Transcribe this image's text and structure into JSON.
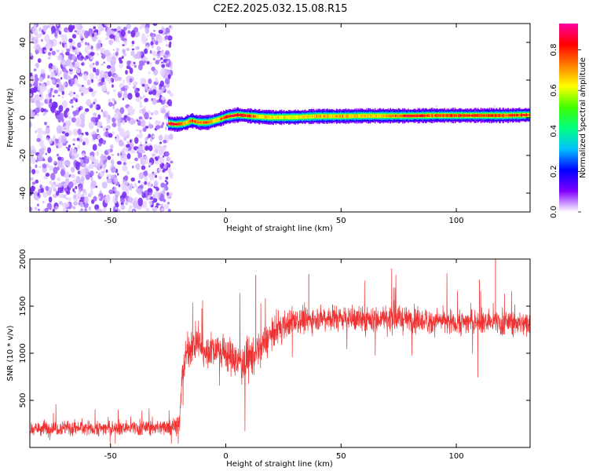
{
  "figure_title": "C2E2.2025.032.15.08.R15",
  "colorbar": {
    "label": "Normalized spectral amplitude",
    "ticks": [
      "0.0",
      "0.2",
      "0.4",
      "0.6",
      "0.8"
    ],
    "tick_values": [
      0.0,
      0.2,
      0.4,
      0.6,
      0.8
    ],
    "range": [
      0,
      0.93
    ],
    "colormap": [
      "#ffffff",
      "#8000ff",
      "#0000ff",
      "#00c0ff",
      "#00ff80",
      "#40ff00",
      "#ffff00",
      "#ff8000",
      "#ff0000",
      "#ff00a0"
    ]
  },
  "chart_data": [
    {
      "type": "heatmap",
      "title": "",
      "xlabel": "Height of straight line (km)",
      "ylabel": "Frequency (Hz)",
      "xlim": [
        -85,
        132
      ],
      "ylim": [
        -50,
        50
      ],
      "xticks": [
        -50,
        0,
        50,
        100
      ],
      "yticks": [
        -40,
        -20,
        0,
        20,
        40
      ],
      "xtick_labels": [
        "-50",
        "0",
        "50",
        "100"
      ],
      "ytick_labels": [
        "-40",
        "-20",
        "0",
        "20",
        "40"
      ],
      "regions": [
        {
          "name_hidden": true,
          "x_range": [
            -85,
            -25
          ],
          "y_range": [
            -50,
            50
          ],
          "kind": "scattered noise",
          "amplitude": [
            0.0,
            0.12
          ]
        },
        {
          "x_range": [
            -25,
            132
          ],
          "kind": "narrow line near 0 Hz",
          "amplitude_peak": 0.9
        }
      ],
      "ridge": {
        "x": [
          -25,
          -22,
          -18,
          -15,
          -12,
          -8,
          -5,
          -2,
          0,
          5,
          10,
          15,
          20,
          30,
          40,
          50,
          60,
          70,
          80,
          90,
          100,
          110,
          120,
          132
        ],
        "freq": [
          -3,
          -3.5,
          -3,
          -1.5,
          -2.5,
          -2.5,
          -1.5,
          -0.5,
          0.5,
          1.5,
          1.0,
          0.5,
          0.2,
          0.3,
          0.8,
          0.8,
          1.0,
          1.0,
          1.0,
          1.2,
          1.2,
          1.2,
          1.2,
          1.5
        ],
        "peak_amplitude": [
          0.9,
          0.92,
          0.7,
          0.8,
          0.75,
          0.85,
          0.7,
          0.8,
          0.88,
          0.9,
          0.85,
          0.7,
          0.7,
          0.65,
          0.72,
          0.75,
          0.7,
          0.75,
          0.88,
          0.8,
          0.85,
          0.85,
          0.8,
          0.85
        ]
      }
    },
    {
      "type": "line",
      "title": "",
      "xlabel": "Height of straight line (km)",
      "ylabel": "SNR (10 * v/v)",
      "xlim": [
        -85,
        132
      ],
      "ylim": [
        0,
        2000
      ],
      "xticks": [
        -50,
        0,
        50,
        100
      ],
      "yticks": [
        500,
        1000,
        1500,
        2000
      ],
      "xtick_labels": [
        "-50",
        "0",
        "50",
        "100"
      ],
      "ytick_labels": [
        "500",
        "1000",
        "1500",
        "2000"
      ],
      "color": "#ee3333",
      "series": [
        {
          "x": [
            -85,
            -70,
            -55,
            -40,
            -30,
            -22,
            -20,
            -19,
            -17,
            -15,
            -12,
            -10,
            -5,
            0,
            5,
            10,
            15,
            20,
            25,
            30,
            40,
            50,
            60,
            70,
            80,
            90,
            100,
            110,
            120,
            132
          ],
          "mean": [
            200,
            210,
            205,
            210,
            215,
            230,
            250,
            800,
            1000,
            1050,
            1150,
            1000,
            1050,
            1000,
            900,
            950,
            1050,
            1200,
            1300,
            1330,
            1380,
            1380,
            1350,
            1370,
            1360,
            1340,
            1330,
            1340,
            1330,
            1320
          ],
          "spread": [
            120,
            120,
            120,
            120,
            120,
            130,
            150,
            250,
            250,
            250,
            250,
            250,
            250,
            250,
            300,
            300,
            280,
            220,
            220,
            200,
            200,
            200,
            200,
            200,
            200,
            200,
            200,
            200,
            200,
            200
          ]
        }
      ],
      "peaks": [
        {
          "x": 13,
          "y": 1830
        },
        {
          "x": 117,
          "y": 2000
        },
        {
          "x": 110,
          "y": 1780
        },
        {
          "x": 36,
          "y": 1840
        }
      ]
    }
  ]
}
